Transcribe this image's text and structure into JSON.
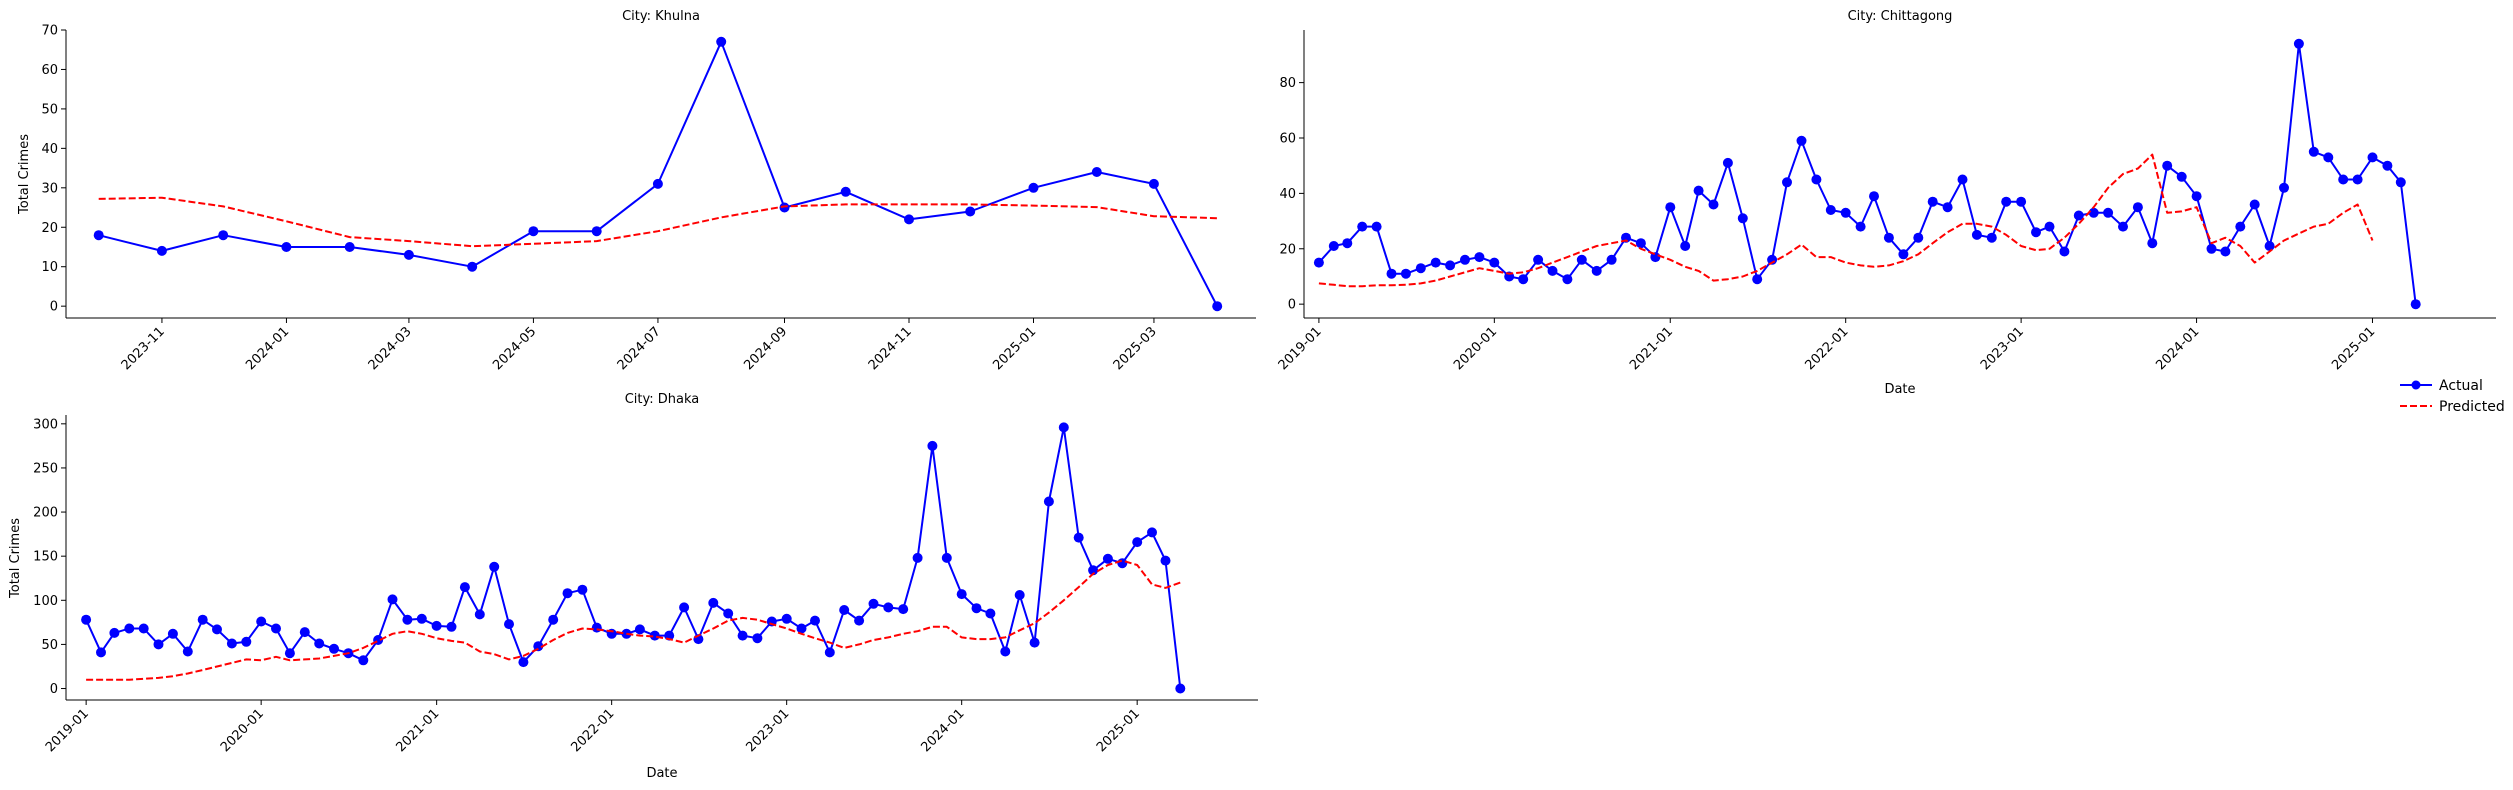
{
  "colors": {
    "actual": "#0000ff",
    "predicted": "#ff0000",
    "axis": "#000000"
  },
  "legend": {
    "placement": "right",
    "items": [
      {
        "label": "Actual",
        "style": "solid-dot"
      },
      {
        "label": "Predicted",
        "style": "dashed"
      }
    ]
  },
  "chart_data": [
    {
      "type": "line",
      "title": "City: Khulna",
      "xlabel": "",
      "ylabel": "Total Crimes",
      "xlim": [
        "2023-09-15",
        "2025-04-20"
      ],
      "ylim": [
        -3,
        70
      ],
      "yticks": [
        0,
        10,
        20,
        30,
        40,
        50,
        60,
        70
      ],
      "xticks": [
        "2023-11-01",
        "2024-01-01",
        "2024-03-01",
        "2024-05-01",
        "2024-07-01",
        "2024-09-01",
        "2024-11-01",
        "2025-01-01",
        "2025-03-01"
      ],
      "xtick_labels": [
        "2023-11",
        "2024-01",
        "2024-03",
        "2024-05",
        "2024-07",
        "2024-09",
        "2024-11",
        "2025-01",
        "2025-03"
      ],
      "series": [
        {
          "name": "Actual",
          "x": [
            "2023-10-01",
            "2023-11-01",
            "2023-12-01",
            "2024-01-01",
            "2024-02-01",
            "2024-03-01",
            "2024-04-01",
            "2024-05-01",
            "2024-06-01",
            "2024-07-01",
            "2024-08-01",
            "2024-09-01",
            "2024-10-01",
            "2024-11-01",
            "2024-12-01",
            "2025-01-01",
            "2025-02-01",
            "2025-03-01",
            "2025-04-01"
          ],
          "values": [
            18,
            14,
            18,
            15,
            15,
            13,
            10,
            19,
            19,
            31,
            67,
            25,
            29,
            22,
            24,
            30,
            34,
            31,
            0
          ]
        },
        {
          "name": "Predicted",
          "x": [
            "2023-10-01",
            "2023-11-01",
            "2023-12-01",
            "2024-01-01",
            "2024-02-01",
            "2024-03-01",
            "2024-04-01",
            "2024-05-01",
            "2024-06-01",
            "2024-07-01",
            "2024-08-01",
            "2024-09-01",
            "2024-10-01",
            "2024-11-01",
            "2024-12-01",
            "2025-01-01",
            "2025-02-01",
            "2025-03-01",
            "2025-04-01"
          ],
          "values": [
            27.2,
            27.5,
            25.3,
            21.5,
            17.5,
            16.5,
            15.2,
            15.8,
            16.5,
            19,
            22.5,
            25.3,
            25.8,
            25.8,
            25.8,
            25.5,
            25.1,
            22.8,
            22.3
          ]
        }
      ]
    },
    {
      "type": "line",
      "title": "City: Chittagong",
      "xlabel": "Date",
      "ylabel": "",
      "xlim": [
        "2018-12-01",
        "2025-09-15"
      ],
      "ylim": [
        -5,
        99
      ],
      "yticks": [
        0,
        20,
        40,
        60,
        80
      ],
      "xticks": [
        "2019-01-01",
        "2020-01-01",
        "2021-01-01",
        "2022-01-01",
        "2023-01-01",
        "2024-01-01",
        "2025-01-01"
      ],
      "xtick_labels": [
        "2019-01",
        "2020-01",
        "2021-01",
        "2022-01",
        "2023-01",
        "2024-01",
        "2025-01"
      ],
      "series": [
        {
          "name": "Actual",
          "start": "2019-01",
          "values": [
            15,
            21,
            22,
            28,
            28,
            11,
            11,
            13,
            15,
            14,
            16,
            17,
            15,
            10,
            9,
            16,
            12,
            9,
            16,
            12,
            16,
            24,
            22,
            17,
            35,
            21,
            41,
            36,
            51,
            31,
            9,
            16,
            44,
            59,
            45,
            34,
            33,
            28,
            39,
            24,
            18,
            24,
            37,
            35,
            45,
            25,
            24,
            37,
            37,
            26,
            28,
            19,
            32,
            33,
            33,
            28,
            35,
            22,
            50,
            46,
            39,
            20,
            19,
            28,
            36,
            21,
            42,
            94,
            55,
            53,
            45,
            45,
            53,
            50,
            44,
            0
          ]
        },
        {
          "name": "Predicted",
          "start": "2019-01",
          "values": [
            7.5,
            7,
            6.5,
            6.5,
            6.8,
            6.8,
            7,
            7.5,
            8.5,
            10,
            11.5,
            13,
            12,
            11,
            11.5,
            13,
            15,
            17,
            19,
            21,
            22,
            23,
            20,
            18,
            16,
            13.5,
            12,
            8.5,
            9,
            10,
            12,
            15,
            18,
            21.5,
            17,
            17,
            15,
            14,
            13.5,
            14,
            15.5,
            18,
            22,
            26,
            29,
            29,
            28,
            25,
            21,
            19.5,
            20,
            24,
            29,
            35,
            42,
            47,
            49,
            54,
            33,
            33.5,
            35,
            22,
            24,
            21,
            15,
            19,
            23,
            25.5,
            28,
            29,
            33,
            36,
            23
          ]
        }
      ]
    },
    {
      "type": "line",
      "title": "City: Dhaka",
      "xlabel": "Date",
      "ylabel": "Total Crimes",
      "xlim": [
        "2018-11-20",
        "2025-09-10"
      ],
      "ylim": [
        -13,
        310
      ],
      "yticks": [
        0,
        50,
        100,
        150,
        200,
        250,
        300
      ],
      "xticks": [
        "2019-01-01",
        "2020-01-01",
        "2021-01-01",
        "2022-01-01",
        "2023-01-01",
        "2024-01-01",
        "2025-01-01"
      ],
      "xtick_labels": [
        "2019-01",
        "2020-01",
        "2021-01",
        "2022-01",
        "2023-01",
        "2024-01",
        "2025-01"
      ],
      "series": [
        {
          "name": "Actual",
          "start": "2019-01",
          "values": [
            78,
            41,
            63,
            68,
            68,
            50,
            62,
            42,
            78,
            67,
            51,
            53,
            76,
            68,
            40,
            64,
            51,
            45,
            40,
            32,
            55,
            101,
            78,
            79,
            71,
            70,
            115,
            84,
            138,
            73,
            30,
            48,
            78,
            108,
            112,
            69,
            62,
            62,
            67,
            60,
            60,
            92,
            56,
            97,
            85,
            60,
            57,
            76,
            79,
            68,
            77,
            41,
            89,
            77,
            96,
            92,
            90,
            148,
            275,
            148,
            107,
            91,
            85,
            42,
            106,
            52,
            212,
            296,
            171,
            134,
            147,
            142,
            166,
            177,
            145,
            0
          ]
        },
        {
          "name": "Predicted",
          "start": "2019-01",
          "values": [
            10,
            10,
            10,
            10,
            11,
            12,
            14,
            17,
            21,
            25,
            29,
            33,
            32,
            36,
            32,
            33,
            34,
            37,
            40,
            46,
            54,
            62,
            65,
            62,
            57,
            54,
            52,
            42,
            39,
            33,
            37,
            45,
            55,
            63,
            68,
            67,
            65,
            62,
            60,
            59,
            56,
            52,
            60,
            68,
            77,
            80,
            78,
            73,
            68,
            62,
            57,
            52,
            46,
            50,
            55,
            58,
            62,
            65,
            70,
            70,
            58,
            56,
            56,
            58,
            66,
            74,
            86,
            100,
            115,
            130,
            140,
            145,
            140,
            118,
            114,
            120
          ]
        }
      ]
    }
  ]
}
